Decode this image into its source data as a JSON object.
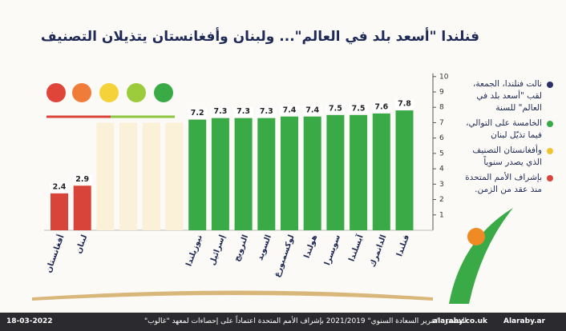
{
  "title": "فنلندا \"أسعد بلد في العالم\"... ولبنان وأفغانستان يتذيلان التصنيف",
  "chart_data": {
    "type": "bar",
    "categories": [
      "أفغانستان",
      "لبنان",
      "نيوزيلندا",
      "إسرائيل",
      "النرويج",
      "السويد",
      "لوكسمبورغ",
      "هولندا",
      "سويسرا",
      "آيسلندا",
      "الدانمرك",
      "فنلندا"
    ],
    "values": [
      2.4,
      2.9,
      7.2,
      7.3,
      7.3,
      7.3,
      7.4,
      7.4,
      7.5,
      7.5,
      7.6,
      7.8
    ],
    "colors": [
      "#d9443a",
      "#d9443a",
      "#3aaa47",
      "#3aaa47",
      "#3aaa47",
      "#3aaa47",
      "#3aaa47",
      "#3aaa47",
      "#3aaa47",
      "#3aaa47",
      "#3aaa47",
      "#3aaa47"
    ],
    "ylim": [
      0,
      10
    ],
    "yticks": [
      1,
      2,
      3,
      4,
      5,
      6,
      7,
      8,
      9,
      10
    ]
  },
  "sidebar": {
    "items": [
      {
        "text": "نالت فنلندا، الجمعة، لقب \"أسعد بلد في العالم\" للسنة",
        "color": "#2a2f6b"
      },
      {
        "text": "الخامسة على التوالي، فيما تذيّل لبنان",
        "color": "#3aaa47"
      },
      {
        "text": "وأفغانستان التصنيف الذي يصدر سنوياً",
        "color": "#f2c230"
      },
      {
        "text": "بإشراف الأمم المتحدة منذ عقد من الزمن.",
        "color": "#d9443a"
      }
    ]
  },
  "footer": {
    "date": "18-03-2022",
    "source": "المصدر: \"تقرير السعادة السنوي\" 2021/2019 بإشراف الأمم المتحدة اعتماداً على إحصاءات لمعهد \"غالوب\"",
    "site": "alaraby.co.uk",
    "social": "Alaraby.ar"
  }
}
